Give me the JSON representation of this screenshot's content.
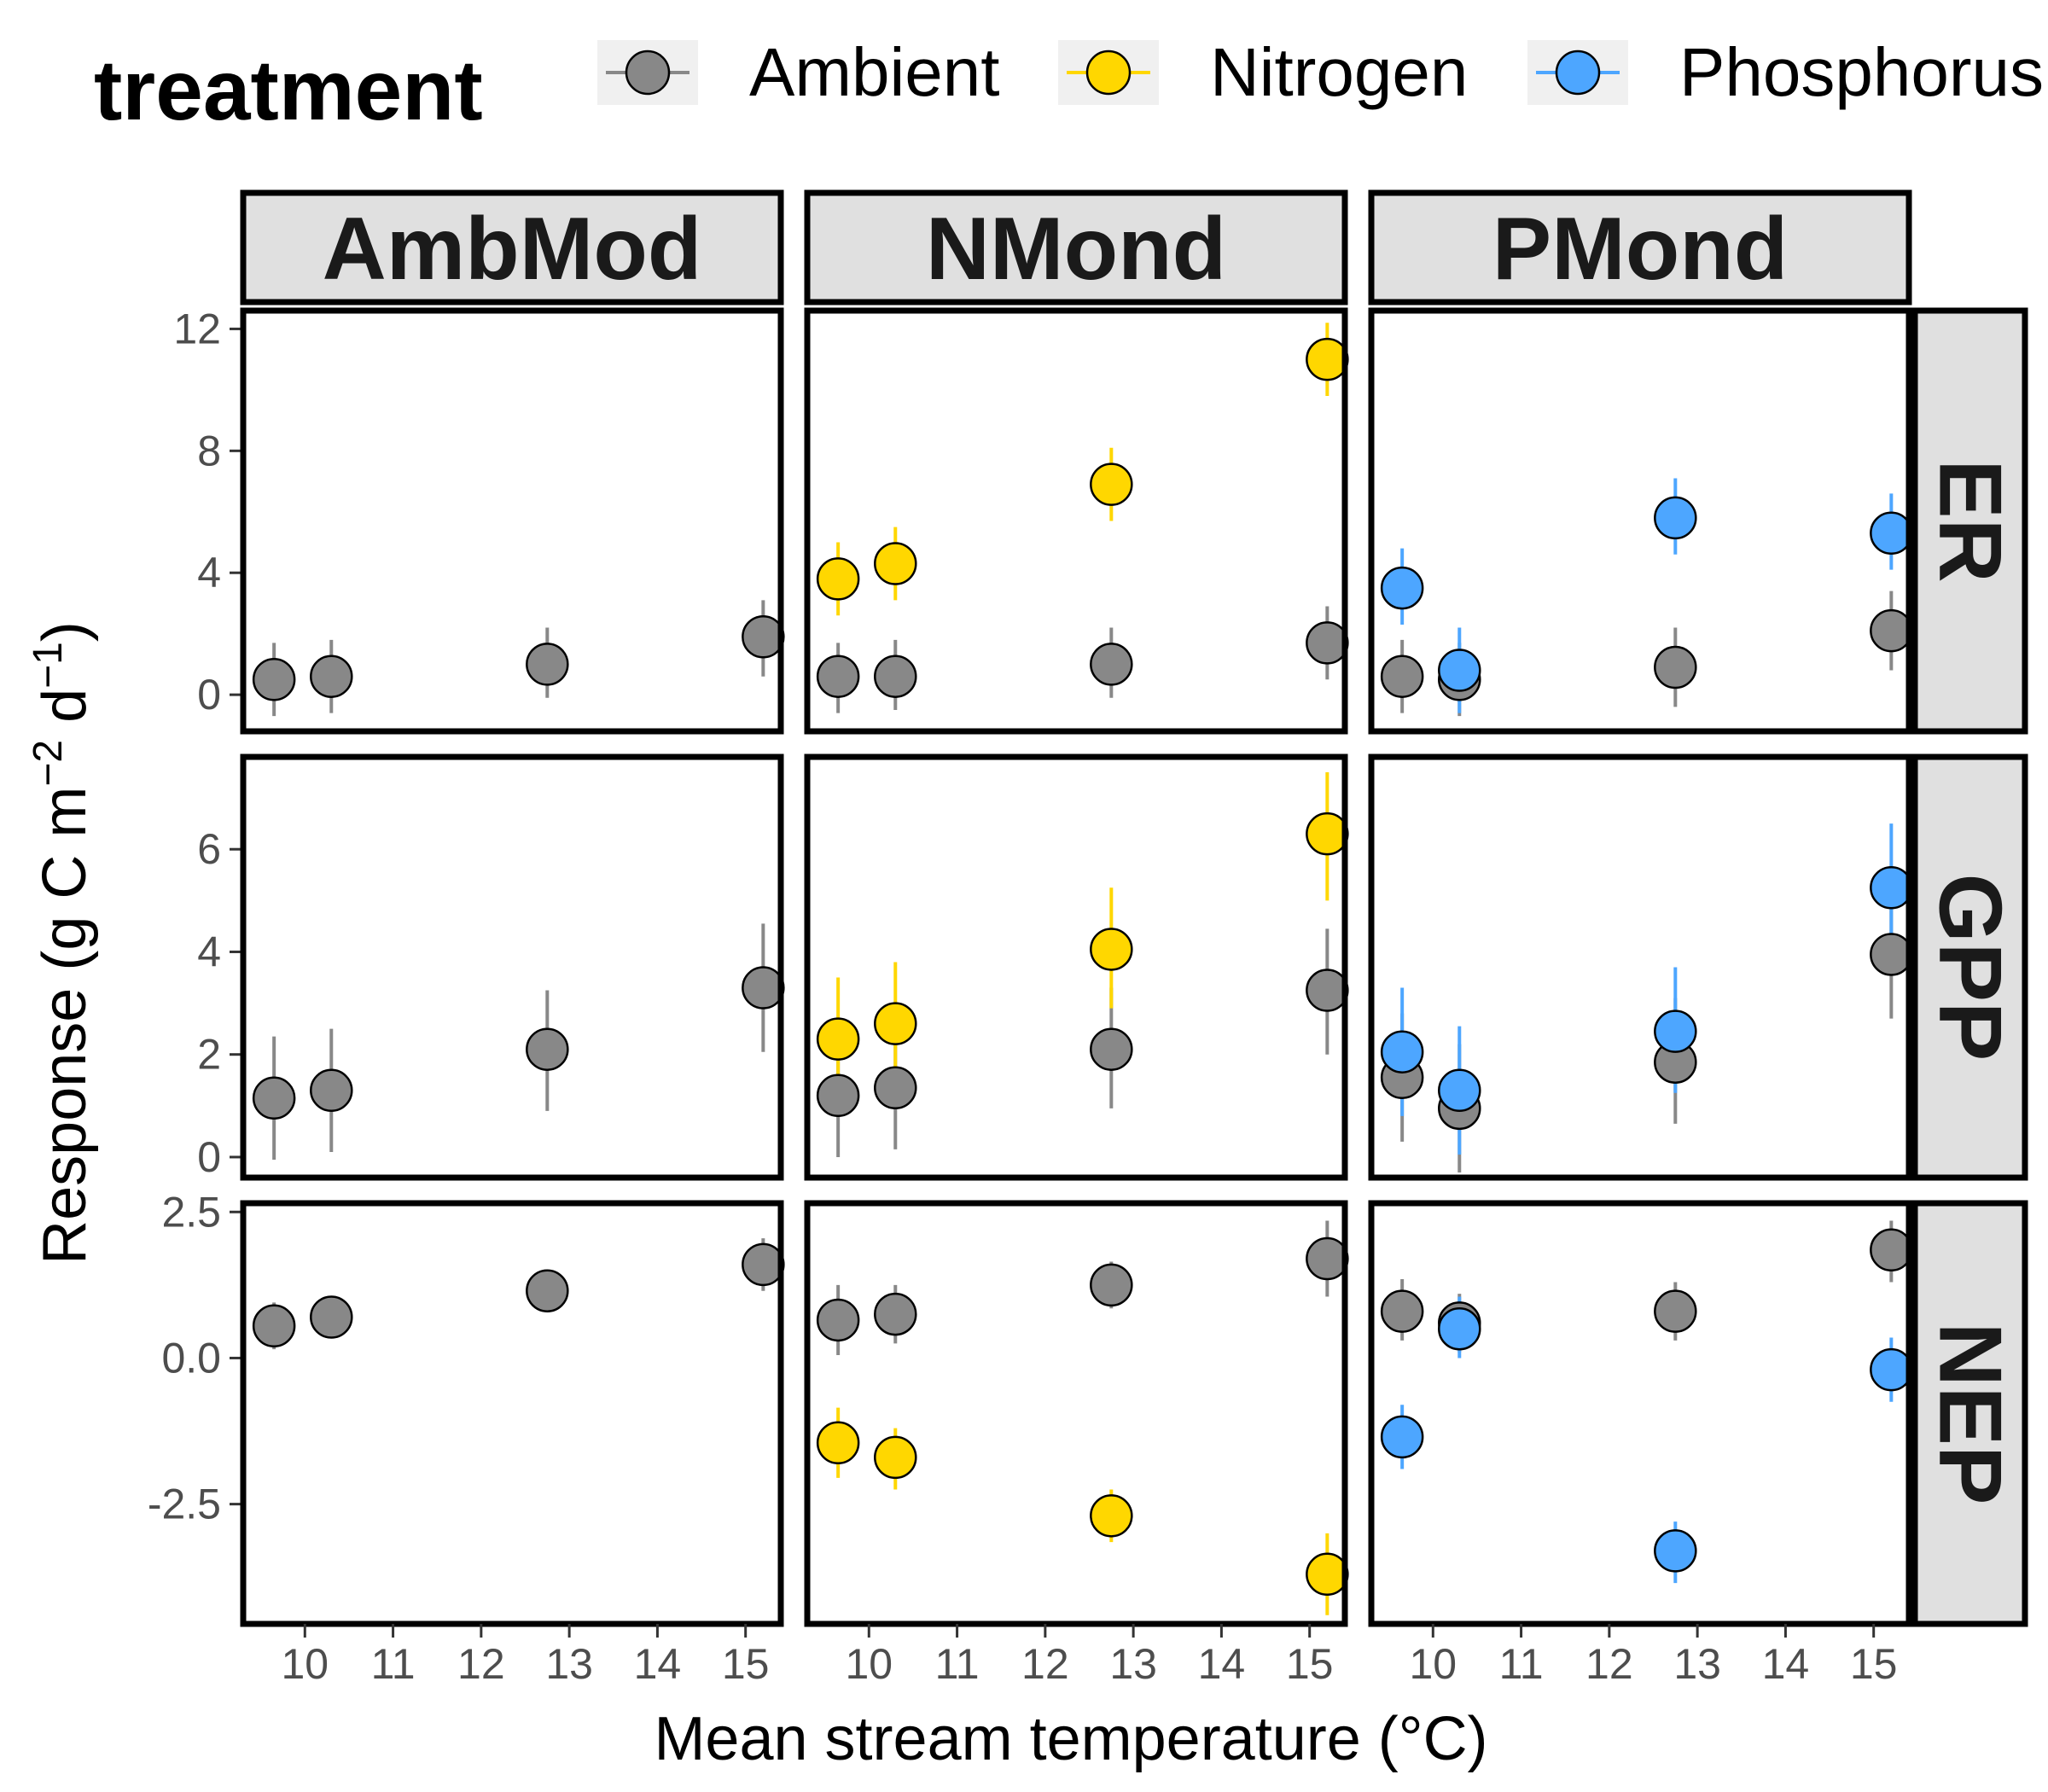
{
  "chart_data": {
    "type": "scatter",
    "legend": {
      "title": "treatment",
      "entries": [
        {
          "name": "Ambient",
          "color": "#888888"
        },
        {
          "name": "Nitrogen",
          "color": "#FFD700"
        },
        {
          "name": "Phosphorus",
          "color": "#4DA6FF"
        }
      ],
      "placement": "top"
    },
    "xlabel": "Mean stream temperature (°C)",
    "ylabel": {
      "main": "Response (g C m",
      "exp1": "−2",
      "mid": " d",
      "exp2": "−1",
      "close": ")"
    },
    "xlim": [
      9.3,
      15.4
    ],
    "xticks": [
      10,
      11,
      12,
      13,
      14,
      15
    ],
    "columns": [
      "AmbMod",
      "NMond",
      "PMond"
    ],
    "rows": [
      {
        "name": "ER",
        "ylim": [
          -1.2,
          12.6
        ],
        "yticks": [
          0,
          4,
          8,
          12
        ],
        "ytick_labels": [
          "0",
          "4",
          "8",
          "12"
        ]
      },
      {
        "name": "GPP",
        "ylim": [
          -0.4,
          7.8
        ],
        "yticks": [
          0,
          2,
          4,
          6
        ],
        "ytick_labels": [
          "0",
          "2",
          "4",
          "6"
        ]
      },
      {
        "name": "NEP",
        "ylim": [
          -4.55,
          2.65
        ],
        "yticks": [
          -2.5,
          0.0,
          2.5
        ],
        "ytick_labels": [
          "-2.5",
          "0.0",
          "2.5"
        ]
      }
    ],
    "panels": [
      {
        "row": "ER",
        "col": "AmbMod",
        "points": [
          {
            "t": "Ambient",
            "x": 9.65,
            "y": 0.5,
            "lo": -0.7,
            "hi": 1.7
          },
          {
            "t": "Ambient",
            "x": 10.3,
            "y": 0.6,
            "lo": -0.6,
            "hi": 1.8
          },
          {
            "t": "Ambient",
            "x": 12.75,
            "y": 1.0,
            "lo": -0.1,
            "hi": 2.2
          },
          {
            "t": "Ambient",
            "x": 15.2,
            "y": 1.9,
            "lo": 0.6,
            "hi": 3.1
          }
        ]
      },
      {
        "row": "ER",
        "col": "NMond",
        "points": [
          {
            "t": "Ambient",
            "x": 9.65,
            "y": 0.6,
            "lo": -0.6,
            "hi": 1.7
          },
          {
            "t": "Ambient",
            "x": 10.3,
            "y": 0.6,
            "lo": -0.5,
            "hi": 1.8
          },
          {
            "t": "Ambient",
            "x": 12.75,
            "y": 1.0,
            "lo": -0.1,
            "hi": 2.2
          },
          {
            "t": "Ambient",
            "x": 15.2,
            "y": 1.7,
            "lo": 0.5,
            "hi": 2.9
          },
          {
            "t": "Nitrogen",
            "x": 9.65,
            "y": 3.8,
            "lo": 2.6,
            "hi": 5.0
          },
          {
            "t": "Nitrogen",
            "x": 10.3,
            "y": 4.3,
            "lo": 3.1,
            "hi": 5.5
          },
          {
            "t": "Nitrogen",
            "x": 12.75,
            "y": 6.9,
            "lo": 5.7,
            "hi": 8.1
          },
          {
            "t": "Nitrogen",
            "x": 15.2,
            "y": 11.0,
            "lo": 9.8,
            "hi": 12.2
          }
        ]
      },
      {
        "row": "ER",
        "col": "PMond",
        "points": [
          {
            "t": "Ambient",
            "x": 9.65,
            "y": 0.6,
            "lo": -0.6,
            "hi": 1.8
          },
          {
            "t": "Ambient",
            "x": 10.3,
            "y": 0.5,
            "lo": -0.7,
            "hi": 1.7
          },
          {
            "t": "Ambient",
            "x": 12.75,
            "y": 0.9,
            "lo": -0.4,
            "hi": 2.2
          },
          {
            "t": "Ambient",
            "x": 15.2,
            "y": 2.1,
            "lo": 0.8,
            "hi": 3.4
          },
          {
            "t": "Phosphorus",
            "x": 9.65,
            "y": 3.5,
            "lo": 2.3,
            "hi": 4.8
          },
          {
            "t": "Phosphorus",
            "x": 10.3,
            "y": 0.8,
            "lo": -0.6,
            "hi": 2.2
          },
          {
            "t": "Phosphorus",
            "x": 12.75,
            "y": 5.8,
            "lo": 4.6,
            "hi": 7.1
          },
          {
            "t": "Phosphorus",
            "x": 15.2,
            "y": 5.3,
            "lo": 4.1,
            "hi": 6.6
          }
        ]
      },
      {
        "row": "GPP",
        "col": "AmbMod",
        "points": [
          {
            "t": "Ambient",
            "x": 9.65,
            "y": 1.15,
            "lo": -0.05,
            "hi": 2.35
          },
          {
            "t": "Ambient",
            "x": 10.3,
            "y": 1.3,
            "lo": 0.1,
            "hi": 2.5
          },
          {
            "t": "Ambient",
            "x": 12.75,
            "y": 2.1,
            "lo": 0.9,
            "hi": 3.25
          },
          {
            "t": "Ambient",
            "x": 15.2,
            "y": 3.3,
            "lo": 2.05,
            "hi": 4.55
          }
        ]
      },
      {
        "row": "GPP",
        "col": "NMond",
        "points": [
          {
            "t": "Ambient",
            "x": 9.65,
            "y": 1.2,
            "lo": 0.0,
            "hi": 2.4
          },
          {
            "t": "Ambient",
            "x": 10.3,
            "y": 1.35,
            "lo": 0.15,
            "hi": 2.6
          },
          {
            "t": "Ambient",
            "x": 12.75,
            "y": 2.1,
            "lo": 0.95,
            "hi": 3.3
          },
          {
            "t": "Ambient",
            "x": 15.2,
            "y": 3.25,
            "lo": 2.0,
            "hi": 4.45
          },
          {
            "t": "Nitrogen",
            "x": 9.65,
            "y": 2.3,
            "lo": 1.1,
            "hi": 3.5
          },
          {
            "t": "Nitrogen",
            "x": 10.3,
            "y": 2.6,
            "lo": 1.4,
            "hi": 3.8
          },
          {
            "t": "Nitrogen",
            "x": 12.75,
            "y": 4.05,
            "lo": 2.9,
            "hi": 5.25
          },
          {
            "t": "Nitrogen",
            "x": 15.2,
            "y": 6.3,
            "lo": 5.0,
            "hi": 7.5
          }
        ]
      },
      {
        "row": "GPP",
        "col": "PMond",
        "points": [
          {
            "t": "Ambient",
            "x": 9.65,
            "y": 1.55,
            "lo": 0.3,
            "hi": 2.8
          },
          {
            "t": "Ambient",
            "x": 10.3,
            "y": 0.95,
            "lo": -0.3,
            "hi": 2.2
          },
          {
            "t": "Ambient",
            "x": 12.75,
            "y": 1.85,
            "lo": 0.65,
            "hi": 3.1
          },
          {
            "t": "Ambient",
            "x": 15.2,
            "y": 3.95,
            "lo": 2.7,
            "hi": 5.2
          },
          {
            "t": "Phosphorus",
            "x": 9.65,
            "y": 2.05,
            "lo": 0.8,
            "hi": 3.3
          },
          {
            "t": "Phosphorus",
            "x": 10.3,
            "y": 1.3,
            "lo": 0.05,
            "hi": 2.55
          },
          {
            "t": "Phosphorus",
            "x": 12.75,
            "y": 2.45,
            "lo": 1.25,
            "hi": 3.7
          },
          {
            "t": "Phosphorus",
            "x": 15.2,
            "y": 5.25,
            "lo": 4.0,
            "hi": 6.5
          }
        ]
      },
      {
        "row": "NEP",
        "col": "AmbMod",
        "points": [
          {
            "t": "Ambient",
            "x": 9.65,
            "y": 0.55,
            "lo": 0.15,
            "hi": 0.95
          },
          {
            "t": "Ambient",
            "x": 10.3,
            "y": 0.7,
            "lo": 0.35,
            "hi": 1.05
          },
          {
            "t": "Ambient",
            "x": 12.75,
            "y": 1.15,
            "lo": 0.8,
            "hi": 1.5
          },
          {
            "t": "Ambient",
            "x": 15.2,
            "y": 1.6,
            "lo": 1.15,
            "hi": 2.05
          }
        ]
      },
      {
        "row": "NEP",
        "col": "NMond",
        "points": [
          {
            "t": "Ambient",
            "x": 9.65,
            "y": 0.65,
            "lo": 0.05,
            "hi": 1.25
          },
          {
            "t": "Ambient",
            "x": 10.3,
            "y": 0.75,
            "lo": 0.25,
            "hi": 1.25
          },
          {
            "t": "Ambient",
            "x": 12.75,
            "y": 1.25,
            "lo": 0.85,
            "hi": 1.65
          },
          {
            "t": "Ambient",
            "x": 15.2,
            "y": 1.7,
            "lo": 1.05,
            "hi": 2.35
          },
          {
            "t": "Nitrogen",
            "x": 9.65,
            "y": -1.45,
            "lo": -2.05,
            "hi": -0.85
          },
          {
            "t": "Nitrogen",
            "x": 10.3,
            "y": -1.7,
            "lo": -2.25,
            "hi": -1.2
          },
          {
            "t": "Nitrogen",
            "x": 12.75,
            "y": -2.7,
            "lo": -3.15,
            "hi": -2.25
          },
          {
            "t": "Nitrogen",
            "x": 15.2,
            "y": -3.7,
            "lo": -4.4,
            "hi": -3.0
          }
        ]
      },
      {
        "row": "NEP",
        "col": "PMond",
        "points": [
          {
            "t": "Ambient",
            "x": 9.65,
            "y": 0.8,
            "lo": 0.3,
            "hi": 1.35
          },
          {
            "t": "Ambient",
            "x": 10.3,
            "y": 0.6,
            "lo": 0.1,
            "hi": 1.1
          },
          {
            "t": "Ambient",
            "x": 12.75,
            "y": 0.8,
            "lo": 0.3,
            "hi": 1.3
          },
          {
            "t": "Ambient",
            "x": 15.2,
            "y": 1.85,
            "lo": 1.3,
            "hi": 2.35
          },
          {
            "t": "Phosphorus",
            "x": 9.65,
            "y": -1.35,
            "lo": -1.9,
            "hi": -0.8
          },
          {
            "t": "Phosphorus",
            "x": 10.3,
            "y": 0.5,
            "lo": 0.0,
            "hi": 1.05
          },
          {
            "t": "Phosphorus",
            "x": 12.75,
            "y": -3.3,
            "lo": -3.85,
            "hi": -2.8
          },
          {
            "t": "Phosphorus",
            "x": 15.2,
            "y": -0.2,
            "lo": -0.75,
            "hi": 0.35
          }
        ]
      }
    ]
  }
}
